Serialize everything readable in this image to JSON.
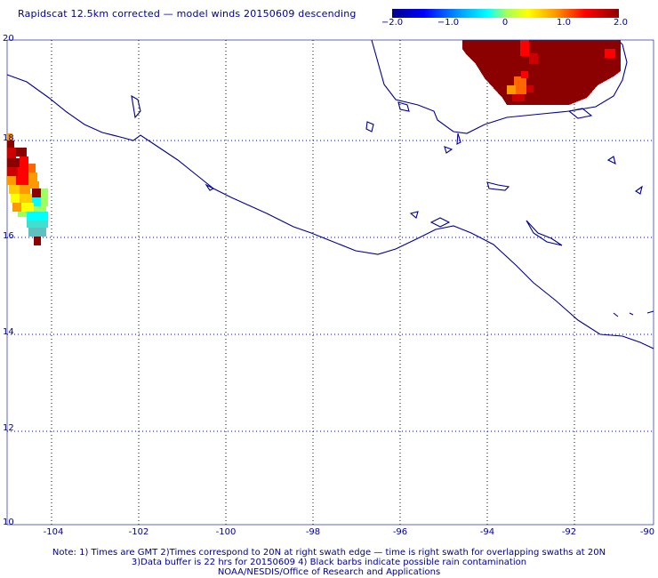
{
  "title": "Rapidscat 12.5km corrected — model winds 20150609 descending",
  "colorbar": {
    "ticks": [
      "−2.0",
      "−1.0",
      "0",
      "1.0",
      "2.0"
    ],
    "values": [
      -2.0,
      -1.0,
      0,
      1.0,
      2.0
    ],
    "colors": [
      "#00008b",
      "#0000ff",
      "#00a0ff",
      "#00ffff",
      "#a0ff60",
      "#ffff00",
      "#ff9900",
      "#ff0000",
      "#8b0000"
    ]
  },
  "lat_labels": [
    "20",
    "18",
    "16",
    "14",
    "12",
    "10"
  ],
  "lon_labels": [
    "-104",
    "-102",
    "-100",
    "-98",
    "-96",
    "-94",
    "-92",
    "-90"
  ],
  "grid": "dotted",
  "map_colors": {
    "coast": "#00008b",
    "grid": "#00008b"
  },
  "notes": [
    "Note: 1) Times are GMT 2)Times correspond to 20N at right swath edge — time is right swath for overlapping swaths at 20N",
    "3)Data buffer is 22 hrs for 20150609 4) Black barbs indicate possible rain contamination",
    "NOAA/NESDIS/Office of Research and Applications"
  ]
}
